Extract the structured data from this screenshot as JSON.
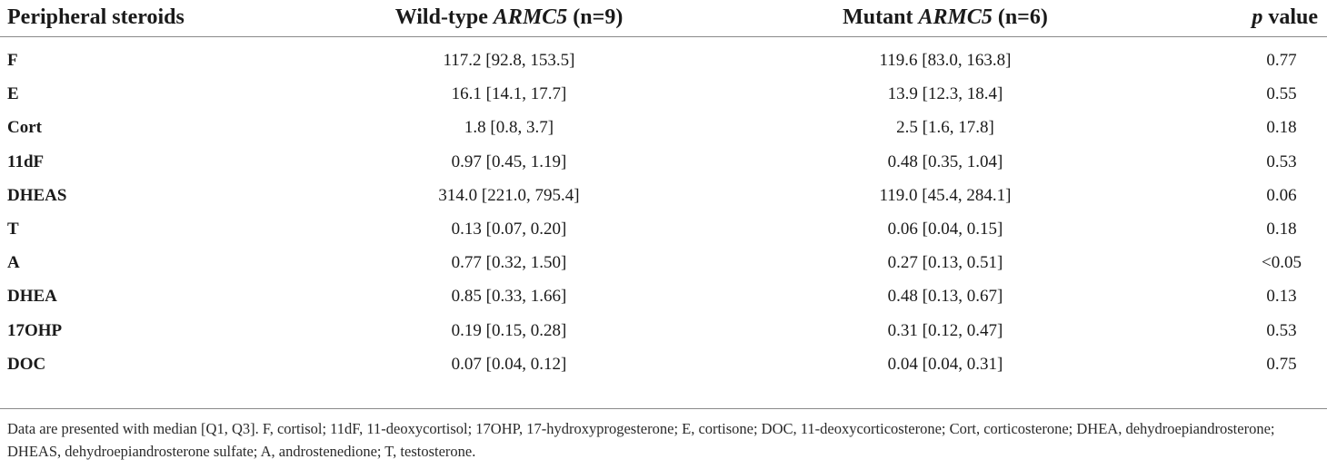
{
  "table": {
    "headers": {
      "col0": "Peripheral steroids",
      "col1_prefix": "Wild-type ",
      "col1_gene": "ARMC5",
      "col1_suffix": " (n=9)",
      "col2_prefix": "Mutant ",
      "col2_gene": "ARMC5",
      "col2_suffix": " (n=6)",
      "col3_italic": "p",
      "col3_suffix": " value"
    },
    "rows": [
      {
        "steroid": "F",
        "wild_type": "117.2 [92.8, 153.5]",
        "mutant": "119.6 [83.0, 163.8]",
        "p": "0.77"
      },
      {
        "steroid": "E",
        "wild_type": "16.1 [14.1, 17.7]",
        "mutant": "13.9 [12.3, 18.4]",
        "p": "0.55"
      },
      {
        "steroid": "Cort",
        "wild_type": "1.8 [0.8, 3.7]",
        "mutant": "2.5 [1.6, 17.8]",
        "p": "0.18"
      },
      {
        "steroid": "11dF",
        "wild_type": "0.97 [0.45, 1.19]",
        "mutant": "0.48 [0.35, 1.04]",
        "p": "0.53"
      },
      {
        "steroid": "DHEAS",
        "wild_type": "314.0 [221.0, 795.4]",
        "mutant": "119.0 [45.4, 284.1]",
        "p": "0.06"
      },
      {
        "steroid": "T",
        "wild_type": "0.13 [0.07, 0.20]",
        "mutant": "0.06 [0.04, 0.15]",
        "p": "0.18"
      },
      {
        "steroid": "A",
        "wild_type": "0.77 [0.32, 1.50]",
        "mutant": "0.27 [0.13, 0.51]",
        "p": "<0.05"
      },
      {
        "steroid": "DHEA",
        "wild_type": "0.85 [0.33, 1.66]",
        "mutant": "0.48 [0.13, 0.67]",
        "p": "0.13"
      },
      {
        "steroid": "17OHP",
        "wild_type": "0.19 [0.15, 0.28]",
        "mutant": "0.31 [0.12, 0.47]",
        "p": "0.53"
      },
      {
        "steroid": "DOC",
        "wild_type": "0.07 [0.04, 0.12]",
        "mutant": "0.04 [0.04, 0.31]",
        "p": "0.75"
      }
    ],
    "footnote": "Data are presented with median [Q1, Q3]. F, cortisol; 11dF, 11-deoxycortisol; 17OHP, 17-hydroxyprogesterone; E, cortisone; DOC, 11-deoxycorticosterone; Cort, corticosterone; DHEA, dehydroepiandrosterone; DHEAS, dehydroepiandrosterone sulfate; A, androstenedione; T, testosterone."
  }
}
